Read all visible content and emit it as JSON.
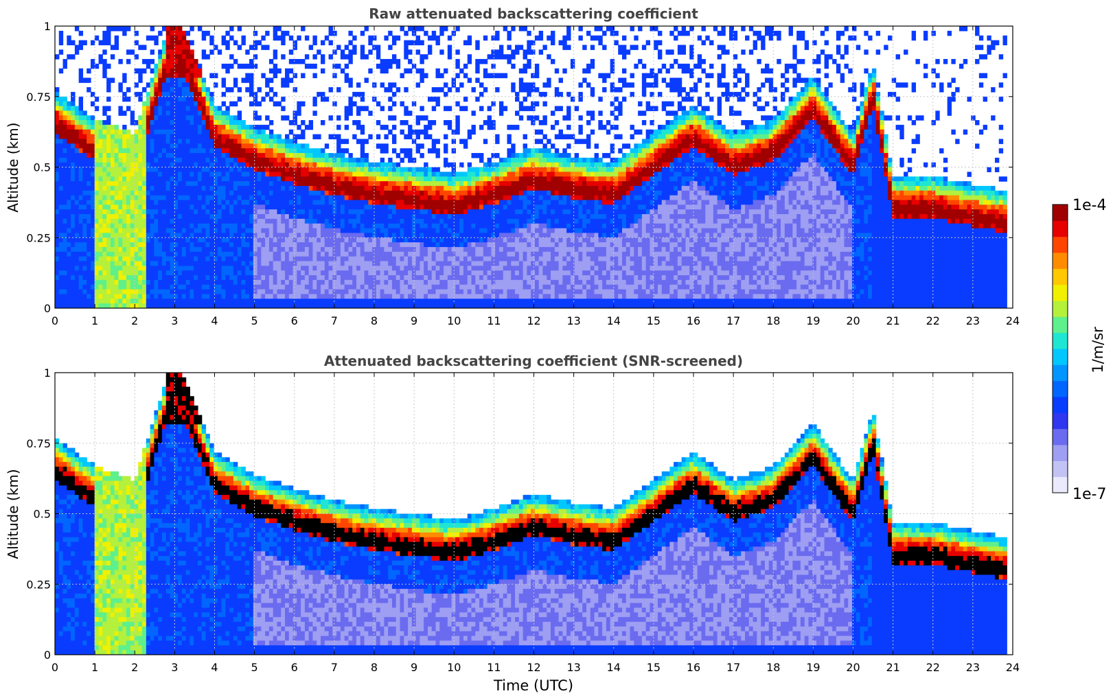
{
  "colors": {
    "colormap": [
      "#eaeafc",
      "#c2c2f5",
      "#9e9ef2",
      "#6b6bf0",
      "#2f37f0",
      "#0a3cff",
      "#0066ff",
      "#0095ff",
      "#00c8ff",
      "#1ee6d2",
      "#5ef08c",
      "#b4f03c",
      "#f0f000",
      "#ffc800",
      "#ff8c00",
      "#ff4600",
      "#e60000",
      "#a00000"
    ],
    "saturated_screened": "#000000",
    "grid": "#c8c8c8"
  },
  "chart_data": [
    {
      "id": "raw",
      "type": "heatmap",
      "title": "Raw attenuated backscattering coefficient",
      "xlabel": "",
      "ylabel": "Altitude (km)",
      "xlim": [
        0,
        24
      ],
      "ylim": [
        0,
        1
      ],
      "x_ticks": [
        0,
        1,
        2,
        3,
        4,
        5,
        6,
        7,
        8,
        9,
        10,
        11,
        12,
        13,
        14,
        15,
        16,
        17,
        18,
        19,
        20,
        21,
        22,
        23,
        24
      ],
      "y_ticks": [
        0,
        0.25,
        0.5,
        0.75,
        1
      ],
      "y_tick_labels": [
        "0",
        "0.25",
        "0.5",
        "0.75",
        "1"
      ],
      "grid": true,
      "data_extent_x": [
        0,
        23.85
      ],
      "layer_altitude_km": {
        "x": [
          0,
          0.5,
          1,
          2,
          3,
          4,
          5,
          6,
          7,
          8,
          9,
          10,
          11,
          12,
          13,
          14,
          15,
          16,
          17,
          18,
          19,
          20,
          20.5,
          21,
          22,
          23,
          23.8
        ],
        "y": [
          0.65,
          0.6,
          0.55,
          0.5,
          0.95,
          0.6,
          0.52,
          0.47,
          0.43,
          0.4,
          0.38,
          0.36,
          0.4,
          0.45,
          0.42,
          0.4,
          0.5,
          0.6,
          0.5,
          0.55,
          0.7,
          0.5,
          0.75,
          0.35,
          0.35,
          0.32,
          0.3
        ]
      }
    },
    {
      "id": "screened",
      "type": "heatmap",
      "title": "Attenuated backscattering coefficient (SNR-screened)",
      "xlabel": "Time (UTC)",
      "ylabel": "Altitude (km)",
      "xlim": [
        0,
        24
      ],
      "ylim": [
        0,
        1
      ],
      "x_ticks": [
        0,
        1,
        2,
        3,
        4,
        5,
        6,
        7,
        8,
        9,
        10,
        11,
        12,
        13,
        14,
        15,
        16,
        17,
        18,
        19,
        20,
        21,
        22,
        23,
        24
      ],
      "y_ticks": [
        0,
        0.25,
        0.5,
        0.75,
        1
      ],
      "y_tick_labels": [
        "0",
        "0.25",
        "0.5",
        "0.75",
        "1"
      ],
      "grid": true,
      "data_extent_x": [
        0,
        23.85
      ]
    }
  ],
  "colorbar": {
    "label": "1/m/sr",
    "max_label": "1e-4",
    "min_label": "1e-7",
    "range": [
      1e-07,
      0.0001
    ],
    "scale": "log"
  }
}
